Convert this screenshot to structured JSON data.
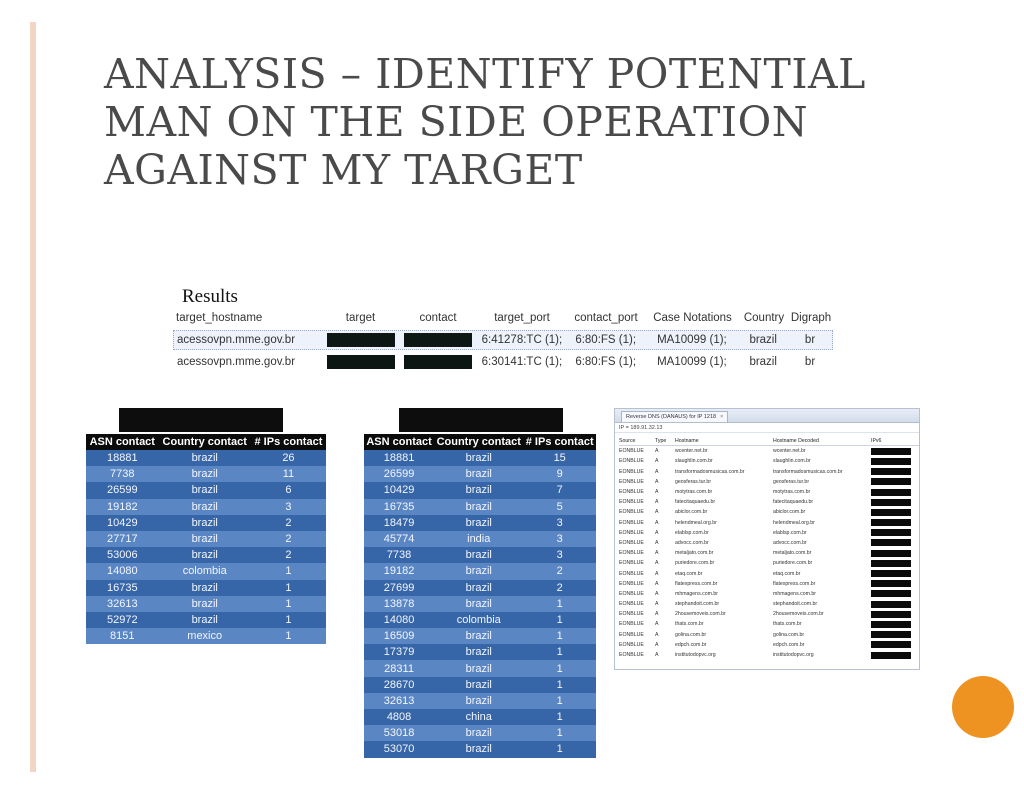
{
  "slide": {
    "title_lines": [
      "ANALYSIS – IDENTIFY POTENTIAL",
      "MAN ON THE SIDE OPERATION",
      "AGAINST MY TARGET"
    ],
    "results_label": "Results"
  },
  "colors": {
    "accent_bar": "#f4d4c4",
    "title": "#4a4a4a",
    "table_dark_row": "#3766a8",
    "table_light_row": "#5b86c4",
    "table_header": "#0b0b0b",
    "redaction": "#0c1713",
    "orange_circle": "#ee9322"
  },
  "results_table": {
    "headers": {
      "target_hostname": "target_hostname",
      "target": "target",
      "contact": "contact",
      "target_port": "target_port",
      "contact_port": "contact_port",
      "case_notations": "Case Notations",
      "country": "Country",
      "digraph": "Digraph"
    },
    "rows": [
      {
        "target_hostname": "acessovpn.mme.gov.br",
        "target_port": "6:41278:TC (1);",
        "contact_port": "6:80:FS (1);",
        "case_notations": "MA10099 (1);",
        "country": "brazil",
        "digraph": "br"
      },
      {
        "target_hostname": "acessovpn.mme.gov.br",
        "target_port": "6:30141:TC (1);",
        "contact_port": "6:80:FS (1);",
        "case_notations": "MA10099 (1);",
        "country": "brazil",
        "digraph": "br"
      }
    ]
  },
  "asn_table_left": {
    "headers": {
      "asn": "ASN contact",
      "country": "Country contact",
      "ips": "# IPs contact"
    },
    "rows": [
      {
        "asn": "18881",
        "country": "brazil",
        "ips": "26"
      },
      {
        "asn": "7738",
        "country": "brazil",
        "ips": "11"
      },
      {
        "asn": "26599",
        "country": "brazil",
        "ips": "6"
      },
      {
        "asn": "19182",
        "country": "brazil",
        "ips": "3"
      },
      {
        "asn": "10429",
        "country": "brazil",
        "ips": "2"
      },
      {
        "asn": "27717",
        "country": "brazil",
        "ips": "2"
      },
      {
        "asn": "53006",
        "country": "brazil",
        "ips": "2"
      },
      {
        "asn": "14080",
        "country": "colombia",
        "ips": "1"
      },
      {
        "asn": "16735",
        "country": "brazil",
        "ips": "1"
      },
      {
        "asn": "32613",
        "country": "brazil",
        "ips": "1"
      },
      {
        "asn": "52972",
        "country": "brazil",
        "ips": "1"
      },
      {
        "asn": "8151",
        "country": "mexico",
        "ips": "1"
      }
    ]
  },
  "asn_table_right": {
    "headers": {
      "asn": "ASN contact",
      "country": "Country contact",
      "ips": "# IPs contact"
    },
    "rows": [
      {
        "asn": "18881",
        "country": "brazil",
        "ips": "15"
      },
      {
        "asn": "26599",
        "country": "brazil",
        "ips": "9"
      },
      {
        "asn": "10429",
        "country": "brazil",
        "ips": "7"
      },
      {
        "asn": "16735",
        "country": "brazil",
        "ips": "5"
      },
      {
        "asn": "18479",
        "country": "brazil",
        "ips": "3"
      },
      {
        "asn": "45774",
        "country": "india",
        "ips": "3"
      },
      {
        "asn": "7738",
        "country": "brazil",
        "ips": "3"
      },
      {
        "asn": "19182",
        "country": "brazil",
        "ips": "2"
      },
      {
        "asn": "27699",
        "country": "brazil",
        "ips": "2"
      },
      {
        "asn": "13878",
        "country": "brazil",
        "ips": "1"
      },
      {
        "asn": "14080",
        "country": "colombia",
        "ips": "1"
      },
      {
        "asn": "16509",
        "country": "brazil",
        "ips": "1"
      },
      {
        "asn": "17379",
        "country": "brazil",
        "ips": "1"
      },
      {
        "asn": "28311",
        "country": "brazil",
        "ips": "1"
      },
      {
        "asn": "28670",
        "country": "brazil",
        "ips": "1"
      },
      {
        "asn": "32613",
        "country": "brazil",
        "ips": "1"
      },
      {
        "asn": "4808",
        "country": "china",
        "ips": "1"
      },
      {
        "asn": "53018",
        "country": "brazil",
        "ips": "1"
      },
      {
        "asn": "53070",
        "country": "brazil",
        "ips": "1"
      }
    ]
  },
  "dns_panel": {
    "tab_label": "Reverse DNS (DANAUS) for IP 1218",
    "ip_line": "IP = 189.91.32.13",
    "headers": {
      "source": "Source",
      "type": "Type",
      "hostname": "Hostname",
      "decoded": "Hostname Decoded",
      "ipv6": "IPv6"
    },
    "rows": [
      {
        "source": "EONBLUE",
        "type": "A",
        "hostname": "wcenter.net.br",
        "decoded": "wcenter.net.br"
      },
      {
        "source": "EONBLUE",
        "type": "A",
        "hostname": "slaughlin.com.br",
        "decoded": "slaughlin.com.br"
      },
      {
        "source": "EONBLUE",
        "type": "A",
        "hostname": "transformadosmusicas.com.br",
        "decoded": "transformadosmusicas.com.br"
      },
      {
        "source": "EONBLUE",
        "type": "A",
        "hostname": "geosferas.tur.br",
        "decoded": "geosferas.tur.br"
      },
      {
        "source": "EONBLUE",
        "type": "A",
        "hostname": "motytras.com.br",
        "decoded": "motytras.com.br"
      },
      {
        "source": "EONBLUE",
        "type": "A",
        "hostname": "fatecitaquaedu.br",
        "decoded": "fatecitaquaedu.br"
      },
      {
        "source": "EONBLUE",
        "type": "A",
        "hostname": "abiclor.com.br",
        "decoded": "abiclor.com.br"
      },
      {
        "source": "EONBLUE",
        "type": "A",
        "hostname": "helendmeal.org.br",
        "decoded": "helendmeal.org.br"
      },
      {
        "source": "EONBLUE",
        "type": "A",
        "hostname": "elablsp.com.br",
        "decoded": "elablsp.com.br"
      },
      {
        "source": "EONBLUE",
        "type": "A",
        "hostname": "advocc.com.br",
        "decoded": "advocc.com.br"
      },
      {
        "source": "EONBLUE",
        "type": "A",
        "hostname": "metaljato.com.br",
        "decoded": "metaljato.com.br"
      },
      {
        "source": "EONBLUE",
        "type": "A",
        "hostname": "puriedore.com.br",
        "decoded": "puriedore.com.br"
      },
      {
        "source": "EONBLUE",
        "type": "A",
        "hostname": "etaq.com.br",
        "decoded": "etaq.com.br"
      },
      {
        "source": "EONBLUE",
        "type": "A",
        "hostname": "flatexpress.com.br",
        "decoded": "flatexpress.com.br"
      },
      {
        "source": "EONBLUE",
        "type": "A",
        "hostname": "mhmagens.com.br",
        "decoded": "mhmagens.com.br"
      },
      {
        "source": "EONBLUE",
        "type": "A",
        "hostname": "stephandoit.com.br",
        "decoded": "stephandoit.com.br"
      },
      {
        "source": "EONBLUE",
        "type": "A",
        "hostname": "2housemoveis.com.br",
        "decoded": "2housemoveis.com.br"
      },
      {
        "source": "EONBLUE",
        "type": "A",
        "hostname": "thats.com.br",
        "decoded": "thats.com.br"
      },
      {
        "source": "EONBLUE",
        "type": "A",
        "hostname": "golina.com.br",
        "decoded": "golina.com.br"
      },
      {
        "source": "EONBLUE",
        "type": "A",
        "hostname": "edpch.com.br",
        "decoded": "edpch.com.br"
      },
      {
        "source": "EONBLUE",
        "type": "A",
        "hostname": "institutodopvc.org",
        "decoded": "institutodopvc.org"
      }
    ]
  }
}
